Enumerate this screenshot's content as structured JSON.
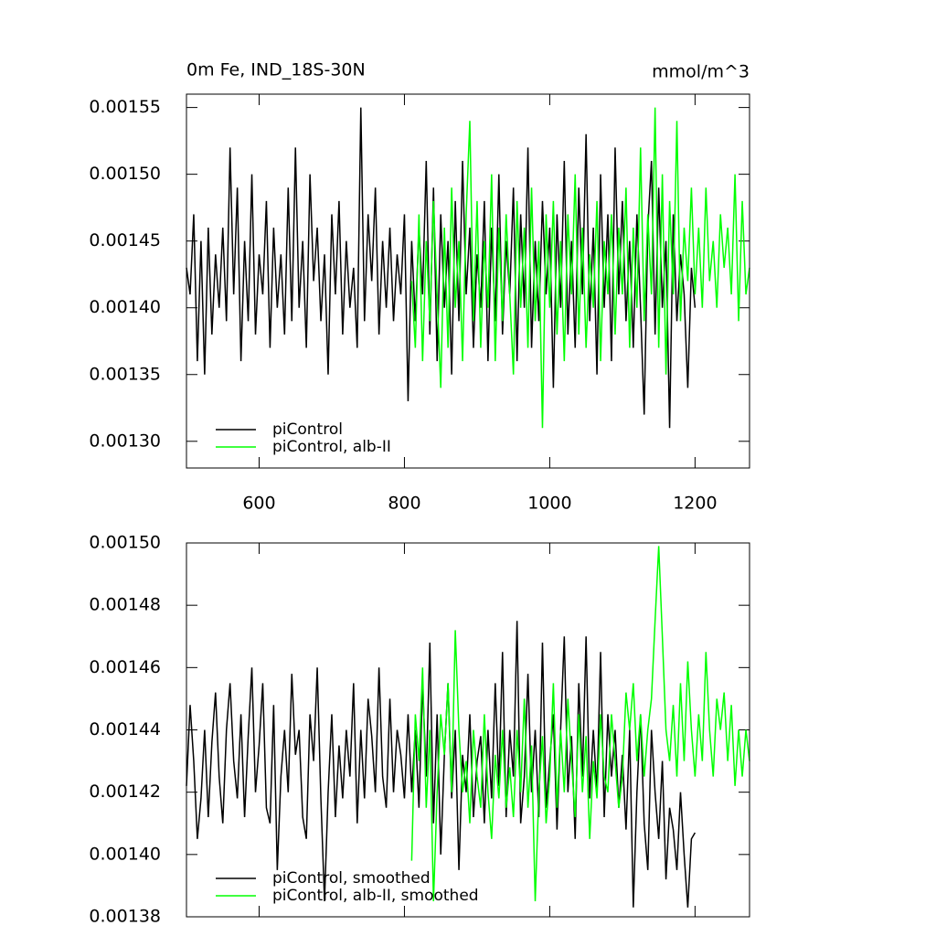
{
  "chart_data": [
    {
      "type": "line",
      "title": "0m Fe, IND_18S-30N",
      "units": "mmol/m^3",
      "x": [
        500,
        505,
        510,
        515,
        520,
        525,
        530,
        535,
        540,
        545,
        550,
        555,
        560,
        565,
        570,
        575,
        580,
        585,
        590,
        595,
        600,
        605,
        610,
        615,
        620,
        625,
        630,
        635,
        640,
        645,
        650,
        655,
        660,
        665,
        670,
        675,
        680,
        685,
        690,
        695,
        700,
        705,
        710,
        715,
        720,
        725,
        730,
        735,
        740,
        745,
        750,
        755,
        760,
        765,
        770,
        775,
        780,
        785,
        790,
        795,
        800,
        805,
        810,
        815,
        820,
        825,
        830,
        835,
        840,
        845,
        850,
        855,
        860,
        865,
        870,
        875,
        880,
        885,
        890,
        895,
        900,
        905,
        910,
        915,
        920,
        925,
        930,
        935,
        940,
        945,
        950,
        955,
        960,
        965,
        970,
        975,
        980,
        985,
        990,
        995,
        1000,
        1005,
        1010,
        1015,
        1020,
        1025,
        1030,
        1035,
        1040,
        1045,
        1050,
        1055,
        1060,
        1065,
        1070,
        1075,
        1080,
        1085,
        1090,
        1095,
        1100,
        1105,
        1110,
        1115,
        1120,
        1125,
        1130,
        1135,
        1140,
        1145,
        1150,
        1155,
        1160,
        1165,
        1170,
        1175,
        1180,
        1185,
        1190,
        1195,
        1200,
        1205,
        1210,
        1215,
        1220,
        1225,
        1230,
        1235,
        1240,
        1245,
        1250,
        1255,
        1260,
        1265,
        1270,
        1275
      ],
      "series": [
        {
          "name": "piControl",
          "color": "#000000",
          "values": [
            0.00143,
            0.00141,
            0.00147,
            0.00136,
            0.00145,
            0.00135,
            0.00146,
            0.00138,
            0.00144,
            0.0014,
            0.00146,
            0.00139,
            0.00152,
            0.00141,
            0.00149,
            0.00136,
            0.00145,
            0.00139,
            0.0015,
            0.00138,
            0.00144,
            0.00141,
            0.00148,
            0.00137,
            0.00146,
            0.0014,
            0.00144,
            0.00138,
            0.00149,
            0.00139,
            0.00152,
            0.0014,
            0.00145,
            0.00137,
            0.0015,
            0.00142,
            0.00146,
            0.00139,
            0.00144,
            0.00135,
            0.00147,
            0.00141,
            0.00148,
            0.00138,
            0.00145,
            0.0014,
            0.00143,
            0.00137,
            0.00155,
            0.00139,
            0.00147,
            0.00142,
            0.00149,
            0.00138,
            0.00145,
            0.0014,
            0.00146,
            0.00139,
            0.00144,
            0.00141,
            0.00147,
            0.00133,
            0.00145,
            0.00139,
            0.00146,
            0.00141,
            0.00151,
            0.00138,
            0.00149,
            0.00136,
            0.00147,
            0.0014,
            0.00145,
            0.00135,
            0.00148,
            0.00139,
            0.00151,
            0.00141,
            0.00146,
            0.00137,
            0.00144,
            0.0014,
            0.00148,
            0.00136,
            0.00146,
            0.00139,
            0.0015,
            0.00138,
            0.00145,
            0.00141,
            0.00149,
            0.00136,
            0.00147,
            0.0014,
            0.00152,
            0.00137,
            0.00145,
            0.00139,
            0.00148,
            0.00141,
            0.00146,
            0.00134,
            0.00147,
            0.0014,
            0.00151,
            0.00138,
            0.00145,
            0.00137,
            0.00149,
            0.00141,
            0.00153,
            0.00139,
            0.00146,
            0.00135,
            0.0015,
            0.0014,
            0.00147,
            0.00136,
            0.00152,
            0.00141,
            0.00148,
            0.00139,
            0.00145,
            0.00137,
            0.00147,
            0.0014,
            0.00132,
            0.00146,
            0.00151,
            0.00138,
            0.00149,
            0.0014,
            0.00145,
            0.00131,
            0.00147,
            0.00139,
            0.00144,
            0.00141,
            0.00134,
            0.00143,
            0.0014,
            null,
            null,
            null,
            null,
            null,
            null,
            null,
            null,
            null,
            null,
            null,
            null,
            null,
            null,
            null
          ]
        },
        {
          "name": "piControl, alb-II",
          "color": "#00ff00",
          "values": [
            null,
            null,
            null,
            null,
            null,
            null,
            null,
            null,
            null,
            null,
            null,
            null,
            null,
            null,
            null,
            null,
            null,
            null,
            null,
            null,
            null,
            null,
            null,
            null,
            null,
            null,
            null,
            null,
            null,
            null,
            null,
            null,
            null,
            null,
            null,
            null,
            null,
            null,
            null,
            null,
            null,
            null,
            null,
            null,
            null,
            null,
            null,
            null,
            null,
            null,
            null,
            null,
            null,
            null,
            null,
            null,
            null,
            null,
            null,
            null,
            null,
            null,
            0.00142,
            0.00137,
            0.00147,
            0.00136,
            0.00145,
            0.00139,
            0.00148,
            0.00141,
            0.00134,
            0.00146,
            0.00137,
            0.00149,
            0.0014,
            0.00145,
            0.00136,
            0.00147,
            0.00154,
            0.00139,
            0.00148,
            0.00137,
            0.00145,
            0.0014,
            0.0015,
            0.00136,
            0.00146,
            0.00139,
            0.00147,
            0.00141,
            0.00135,
            0.00148,
            0.0014,
            0.00146,
            0.00137,
            0.00149,
            0.00139,
            0.00145,
            0.00131,
            0.00147,
            0.0014,
            0.00148,
            0.00138,
            0.00145,
            0.00136,
            0.00147,
            0.00141,
            0.0015,
            0.00138,
            0.00146,
            0.00137,
            0.00144,
            0.0014,
            0.00148,
            0.00136,
            0.00145,
            0.00141,
            0.00147,
            0.00138,
            0.00146,
            0.00141,
            0.00149,
            0.00137,
            0.00146,
            0.0014,
            0.00152,
            0.00139,
            0.00147,
            0.00141,
            0.00155,
            0.00137,
            0.0015,
            0.00135,
            0.00148,
            0.00141,
            0.00154,
            0.00139,
            0.00146,
            0.00142,
            0.00149,
            0.00141,
            0.00146,
            0.0014,
            0.00149,
            0.00142,
            0.00145,
            0.0014,
            0.00147,
            0.00143,
            0.00146,
            0.00141,
            0.0015,
            0.00139,
            0.00148,
            0.00141,
            0.00143
          ]
        }
      ],
      "xlim": [
        500,
        1275
      ],
      "xticks": [
        600,
        800,
        1000,
        1200
      ],
      "xticklabels": true,
      "ylim": [
        0.00128,
        0.00156
      ],
      "yticks": [
        {
          "value": 0.0013,
          "label": "0.00130"
        },
        0.00135,
        {
          "value": 0.0014,
          "label": "0.00140"
        },
        0.00145,
        {
          "value": 0.0015,
          "label": "0.00150"
        },
        0.00155
      ],
      "legend": "lower left"
    },
    {
      "type": "line",
      "x": [
        500,
        505,
        510,
        515,
        520,
        525,
        530,
        535,
        540,
        545,
        550,
        555,
        560,
        565,
        570,
        575,
        580,
        585,
        590,
        595,
        600,
        605,
        610,
        615,
        620,
        625,
        630,
        635,
        640,
        645,
        650,
        655,
        660,
        665,
        670,
        675,
        680,
        685,
        690,
        695,
        700,
        705,
        710,
        715,
        720,
        725,
        730,
        735,
        740,
        745,
        750,
        755,
        760,
        765,
        770,
        775,
        780,
        785,
        790,
        795,
        800,
        805,
        810,
        815,
        820,
        825,
        830,
        835,
        840,
        845,
        850,
        855,
        860,
        865,
        870,
        875,
        880,
        885,
        890,
        895,
        900,
        905,
        910,
        915,
        920,
        925,
        930,
        935,
        940,
        945,
        950,
        955,
        960,
        965,
        970,
        975,
        980,
        985,
        990,
        995,
        1000,
        1005,
        1010,
        1015,
        1020,
        1025,
        1030,
        1035,
        1040,
        1045,
        1050,
        1055,
        1060,
        1065,
        1070,
        1075,
        1080,
        1085,
        1090,
        1095,
        1100,
        1105,
        1110,
        1115,
        1120,
        1125,
        1130,
        1135,
        1140,
        1145,
        1150,
        1155,
        1160,
        1165,
        1170,
        1175,
        1180,
        1185,
        1190,
        1195,
        1200,
        1205,
        1210,
        1215,
        1220,
        1225,
        1230,
        1235,
        1240,
        1245,
        1250,
        1255,
        1260,
        1265,
        1270,
        1275
      ],
      "series": [
        {
          "name": "piControl, smoothed",
          "color": "#000000",
          "values": [
            0.001422,
            0.001448,
            0.00143,
            0.001405,
            0.001418,
            0.00144,
            0.001412,
            0.001436,
            0.001452,
            0.001425,
            0.00141,
            0.00144,
            0.001455,
            0.00143,
            0.001418,
            0.001445,
            0.001412,
            0.001438,
            0.00146,
            0.00142,
            0.001435,
            0.001455,
            0.001415,
            0.00141,
            0.001448,
            0.001395,
            0.001425,
            0.00144,
            0.00142,
            0.001458,
            0.001432,
            0.00144,
            0.001412,
            0.001405,
            0.001445,
            0.00143,
            0.00146,
            0.001418,
            0.001385,
            0.00142,
            0.001445,
            0.001412,
            0.001435,
            0.001418,
            0.00144,
            0.001425,
            0.001455,
            0.00141,
            0.00144,
            0.001418,
            0.00145,
            0.001438,
            0.00142,
            0.00146,
            0.001425,
            0.001415,
            0.00145,
            0.00142,
            0.00144,
            0.001432,
            0.001418,
            0.001445,
            0.00142,
            0.00144,
            0.001415,
            0.001455,
            0.001425,
            0.001468,
            0.00141,
            0.001445,
            0.0014,
            0.001432,
            0.001455,
            0.001418,
            0.00144,
            0.001395,
            0.001432,
            0.00142,
            0.001445,
            0.001412,
            0.00143,
            0.001438,
            0.00141,
            0.00144,
            0.001418,
            0.001455,
            0.001422,
            0.001465,
            0.001412,
            0.00144,
            0.001425,
            0.001475,
            0.00141,
            0.001425,
            0.001458,
            0.00142,
            0.00144,
            0.001412,
            0.001468,
            0.001415,
            0.00143,
            0.001445,
            0.001408,
            0.00144,
            0.00147,
            0.00142,
            0.001438,
            0.001405,
            0.001455,
            0.001425,
            0.00147,
            0.001418,
            0.00144,
            0.00142,
            0.001465,
            0.001412,
            0.001445,
            0.001425,
            0.00144,
            0.001415,
            0.001432,
            0.001408,
            0.00144,
            0.001383,
            0.00142,
            0.001445,
            0.00141,
            0.001395,
            0.00144,
            0.00142,
            0.001405,
            0.00143,
            0.001392,
            0.001415,
            0.001408,
            0.001395,
            0.00142,
            0.0014,
            0.001383,
            0.001405,
            0.001407,
            null,
            null,
            null,
            null,
            null,
            null,
            null,
            null,
            null,
            null,
            null,
            null,
            null,
            null,
            null
          ]
        },
        {
          "name": "piControl, alb-II, smoothed",
          "color": "#00ff00",
          "values": [
            null,
            null,
            null,
            null,
            null,
            null,
            null,
            null,
            null,
            null,
            null,
            null,
            null,
            null,
            null,
            null,
            null,
            null,
            null,
            null,
            null,
            null,
            null,
            null,
            null,
            null,
            null,
            null,
            null,
            null,
            null,
            null,
            null,
            null,
            null,
            null,
            null,
            null,
            null,
            null,
            null,
            null,
            null,
            null,
            null,
            null,
            null,
            null,
            null,
            null,
            null,
            null,
            null,
            null,
            null,
            null,
            null,
            null,
            null,
            null,
            null,
            null,
            0.001398,
            0.001445,
            0.00143,
            0.00146,
            0.001415,
            0.00144,
            0.001385,
            0.00142,
            0.001445,
            0.001432,
            0.001455,
            0.00142,
            0.001472,
            0.00144,
            0.00142,
            0.00143,
            0.00141,
            0.00144,
            0.001425,
            0.001415,
            0.001445,
            0.00142,
            0.001405,
            0.001432,
            0.001418,
            0.00144,
            0.001415,
            0.001428,
            0.001412,
            0.00144,
            0.00142,
            0.00145,
            0.001415,
            0.001435,
            0.001385,
            0.00142,
            0.001438,
            0.00141,
            0.001425,
            0.001455,
            0.001415,
            0.00144,
            0.00142,
            0.00145,
            0.00143,
            0.001412,
            0.001445,
            0.00142,
            0.001438,
            0.001405,
            0.00143,
            0.001418,
            0.001445,
            0.001425,
            0.00142,
            0.001445,
            0.00143,
            0.001415,
            0.001425,
            0.001452,
            0.00144,
            0.001455,
            0.00143,
            0.001445,
            0.001425,
            0.00144,
            0.00145,
            0.001475,
            0.001499,
            0.00147,
            0.00144,
            0.00143,
            0.001448,
            0.001425,
            0.001455,
            0.00143,
            0.001462,
            0.00144,
            0.001425,
            0.001445,
            0.00143,
            0.001465,
            0.00144,
            0.001425,
            0.00145,
            0.00144,
            0.001452,
            0.00143,
            0.001448,
            0.001422,
            0.00144,
            0.001425,
            0.00144,
            0.00143
          ]
        }
      ],
      "xlim": [
        500,
        1275
      ],
      "xticks": [
        600,
        800,
        1000,
        1200
      ],
      "xticklabels": false,
      "ylim": [
        0.00138,
        0.0015
      ],
      "yticks": [
        0.00138,
        {
          "value": 0.0014,
          "label": "0.00140"
        },
        0.00142,
        0.00144,
        0.00146,
        0.00148,
        {
          "value": 0.0015,
          "label": "0.00150"
        }
      ],
      "legend": "lower left"
    }
  ]
}
